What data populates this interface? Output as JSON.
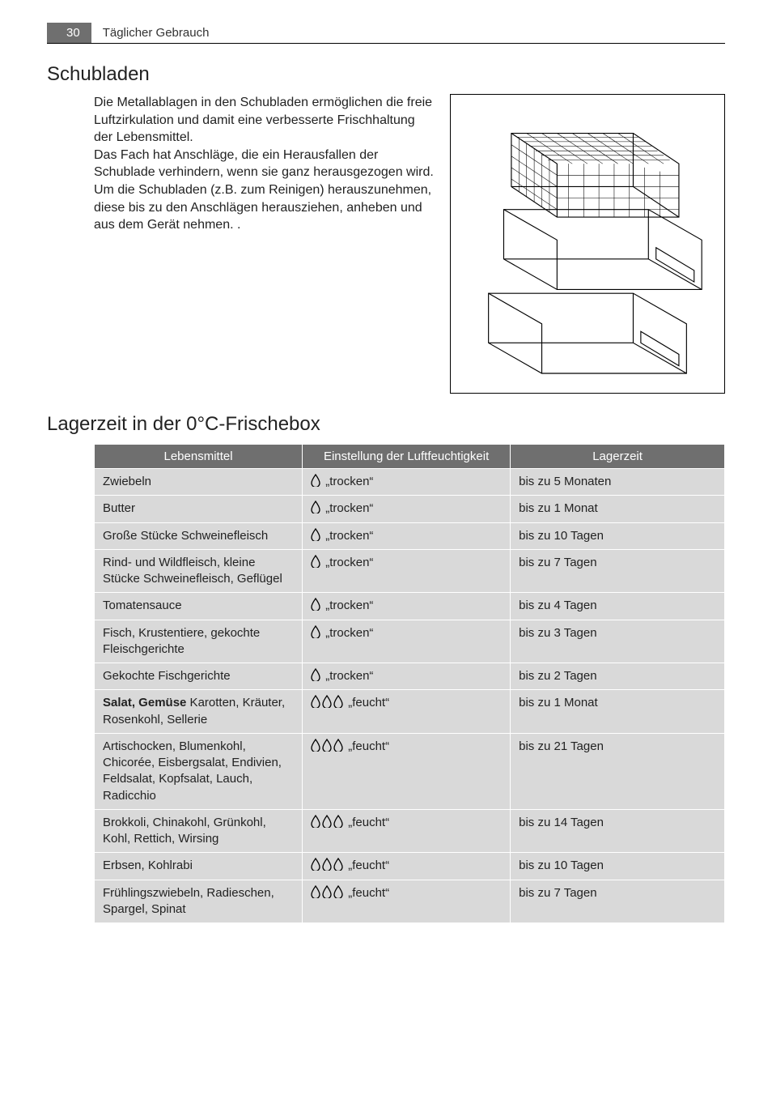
{
  "header": {
    "page_number": "30",
    "running_title": "Täglicher Gebrauch"
  },
  "section1": {
    "heading": "Schubladen",
    "body": "Die Metallablagen in den Schubladen ermöglichen die freie Luftzirkulation und damit eine verbesserte Frischhaltung der Lebensmittel.\nDas Fach hat Anschläge, die ein Herausfallen der Schublade verhindern, wenn sie ganz herausgezogen wird.\nUm die Schubladen (z.B. zum Reinigen) herauszunehmen, diese bis zu den Anschlägen herausziehen, anheben und aus dem Gerät nehmen. .",
    "illustration_label": "drawer-illustration"
  },
  "section2": {
    "heading": "Lagerzeit in der 0°C-Frischebox"
  },
  "table": {
    "columns": [
      "Lebensmittel",
      "Einstellung der Luftfeuchtigkeit",
      "Lagerzeit"
    ],
    "col_widths_pct": [
      33,
      33,
      34
    ],
    "header_bg": "#6f6f6f",
    "header_fg": "#ffffff",
    "cell_bg": "#d9d9d9",
    "humidity_label_dry": "„trocken“",
    "humidity_label_wet": "„feucht“",
    "drop_icon_color": "#000000",
    "rows": [
      {
        "food": "Zwiebeln",
        "drops": 1,
        "humidity": "dry",
        "time": "bis zu 5 Monaten"
      },
      {
        "food": "Butter",
        "drops": 1,
        "humidity": "dry",
        "time": "bis zu 1 Monat"
      },
      {
        "food": "Große Stücke Schweinefleisch",
        "drops": 1,
        "humidity": "dry",
        "time": "bis zu 10 Tagen"
      },
      {
        "food": "Rind- und Wildfleisch, kleine Stücke Schweinefleisch, Geflügel",
        "drops": 1,
        "humidity": "dry",
        "time": "bis zu 7 Tagen"
      },
      {
        "food": "Tomatensauce",
        "drops": 1,
        "humidity": "dry",
        "time": "bis zu 4 Tagen"
      },
      {
        "food": "Fisch, Krustentiere, gekochte Fleischgerichte",
        "drops": 1,
        "humidity": "dry",
        "time": "bis zu 3 Tagen"
      },
      {
        "food": "Gekochte Fischgerichte",
        "drops": 1,
        "humidity": "dry",
        "time": "bis zu 2 Tagen"
      },
      {
        "food_prefix_bold": "Salat, Gemüse",
        "food_rest": "  Karotten, Kräuter, Rosenkohl, Sellerie",
        "drops": 3,
        "humidity": "wet",
        "time": "bis zu 1 Monat"
      },
      {
        "food": "Artischocken, Blumenkohl, Chicorée, Eisbergsalat, Endivien, Feldsalat, Kopfsalat, Lauch, Radicchio",
        "drops": 3,
        "humidity": "wet",
        "time": "bis zu 21 Tagen"
      },
      {
        "food": "Brokkoli, Chinakohl, Grünkohl, Kohl, Rettich, Wirsing",
        "drops": 3,
        "humidity": "wet",
        "time": "bis zu 14 Tagen"
      },
      {
        "food": "Erbsen, Kohlrabi",
        "drops": 3,
        "humidity": "wet",
        "time": "bis zu 10 Tagen"
      },
      {
        "food": "Frühlingszwiebeln, Radieschen, Spargel, Spinat",
        "drops": 3,
        "humidity": "wet",
        "time": "bis zu 7 Tagen"
      }
    ]
  }
}
